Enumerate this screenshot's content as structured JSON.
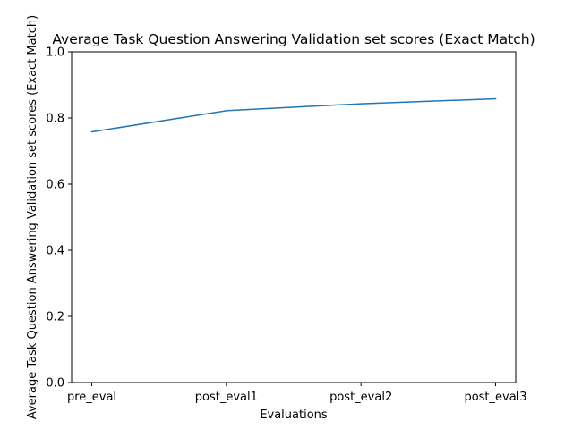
{
  "chart_data": {
    "type": "line",
    "title": "Average Task Question Answering Validation set scores (Exact Match)",
    "xlabel": "Evaluations",
    "ylabel": "Average Task Question Answering Validation set scores (Exact Match)",
    "categories": [
      "pre_eval",
      "post_eval1",
      "post_eval2",
      "post_eval3"
    ],
    "series": [
      {
        "name": "",
        "values": [
          0.758,
          0.822,
          0.843,
          0.858
        ]
      }
    ],
    "ylim": [
      0.0,
      1.0
    ],
    "yticks": [
      "0.0",
      "0.2",
      "0.4",
      "0.6",
      "0.8",
      "1.0"
    ],
    "grid": false,
    "legend": "none",
    "line_color": "#1f77b4"
  }
}
